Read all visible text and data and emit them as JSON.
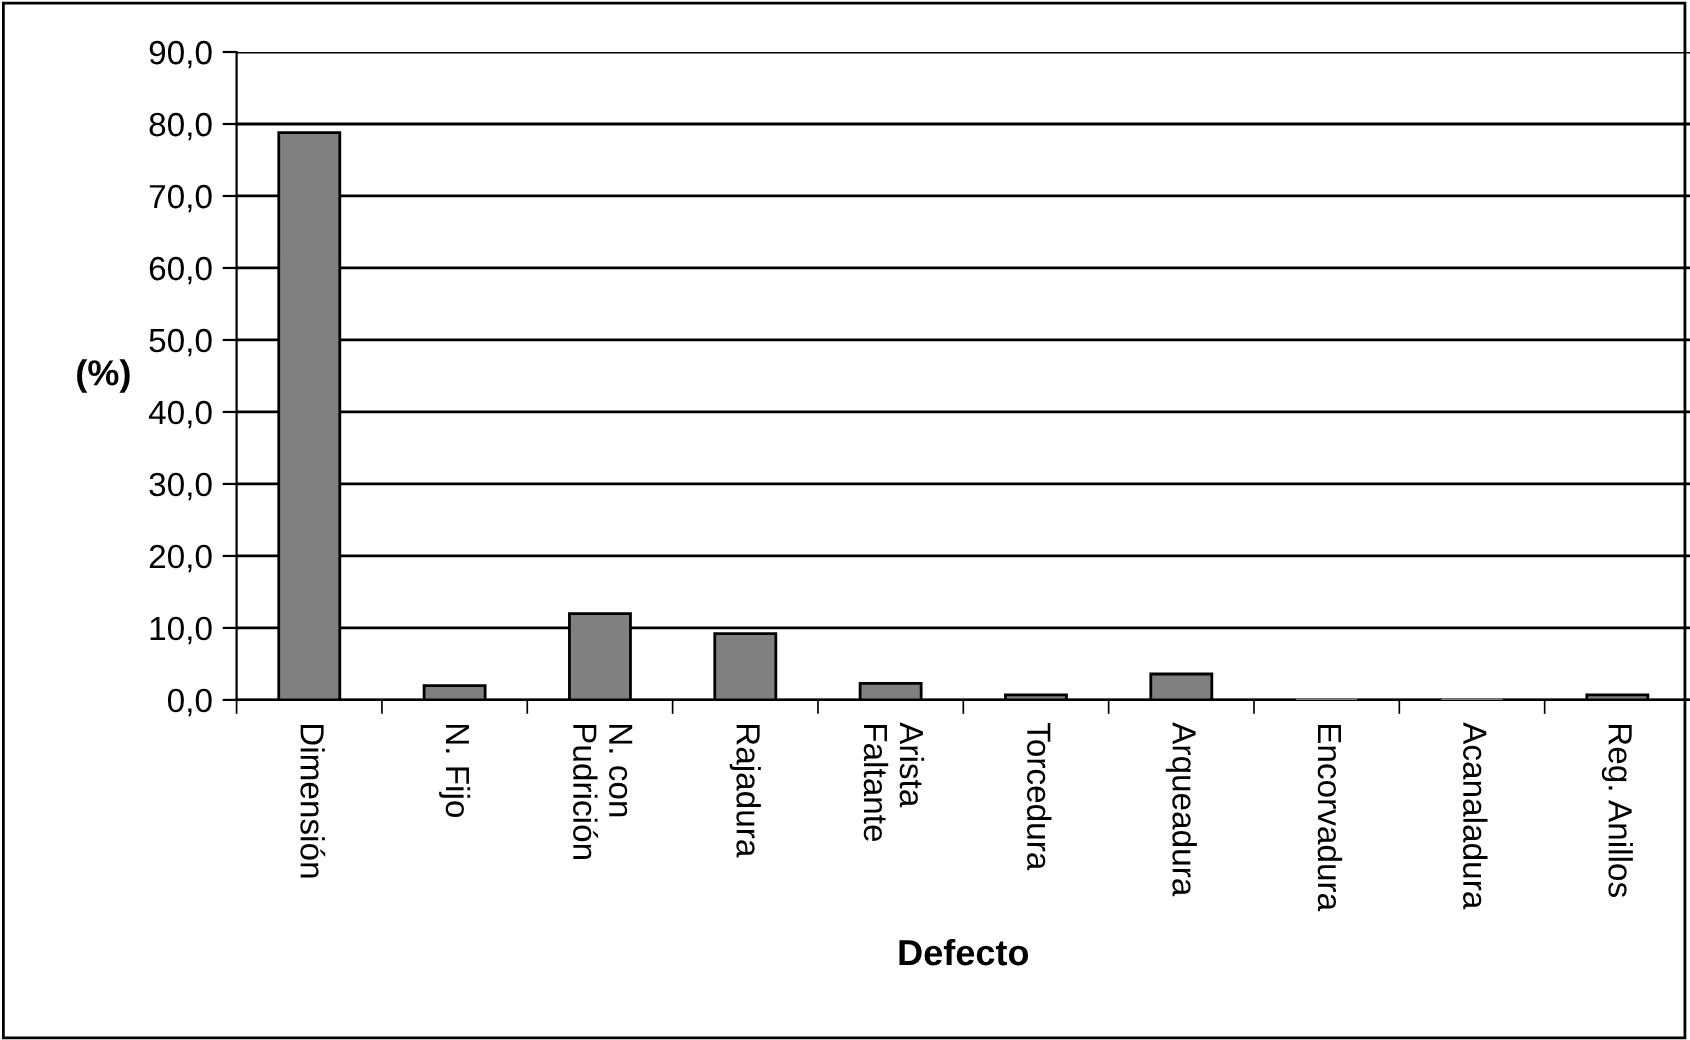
{
  "chart_data": {
    "type": "bar",
    "xlabel": "Defecto",
    "ylabel": "(%)",
    "categories": [
      "Dimensión",
      "N. Fijo",
      "N. con\nPudrición",
      "Rajadura",
      "Arista\nFaltante",
      "Torcedura",
      "Arqueadura",
      "Encorvadura",
      "Acanaladura",
      "Reg. Anillos"
    ],
    "values": [
      78.8,
      2.0,
      12.0,
      9.2,
      2.3,
      0.7,
      3.6,
      0.0,
      0.0,
      0.7
    ],
    "color": "#808080",
    "ylim": [
      0,
      90
    ],
    "yticks": [
      {
        "value": 0,
        "label": "0,0"
      },
      {
        "value": 10,
        "label": "10,0"
      },
      {
        "value": 20,
        "label": "20,0"
      },
      {
        "value": 30,
        "label": "30,0"
      },
      {
        "value": 40,
        "label": "40,0"
      },
      {
        "value": 50,
        "label": "50,0"
      },
      {
        "value": 60,
        "label": "60,0"
      },
      {
        "value": 70,
        "label": "70,0"
      },
      {
        "value": 80,
        "label": "80,0"
      },
      {
        "value": 90,
        "label": "90,0"
      }
    ],
    "grid": "y",
    "legend": false
  }
}
